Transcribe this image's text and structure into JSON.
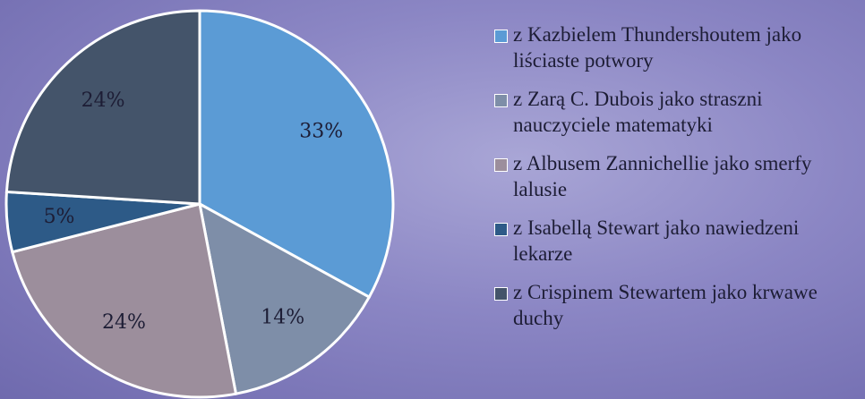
{
  "chart_data": {
    "type": "pie",
    "categories": [
      "z Kazbielem Thundershoutem jako liściaste potwory",
      "z Zarą C. Dubois jako straszni nauczyciele matematyki",
      "z Albusem Zannichellie jako smerfy lalusie",
      "z Isabellą Stewart jako nawiedzeni lekarze",
      "z Crispinem Stewartem jako krwawe duchy"
    ],
    "values": [
      33,
      14,
      24,
      5,
      24
    ],
    "value_labels": [
      "33%",
      "14%",
      "24%",
      "5%",
      "24%"
    ],
    "colors": [
      "#5b9bd5",
      "#7e8ea8",
      "#9c8e9c",
      "#2d5a87",
      "#44546a"
    ],
    "legend": "right"
  }
}
